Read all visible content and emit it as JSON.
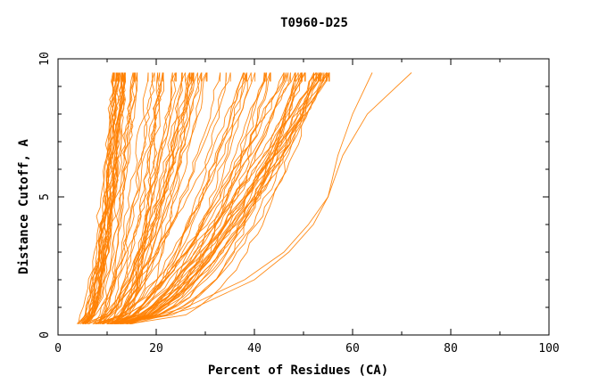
{
  "chart_data": {
    "type": "line",
    "title": "T0960-D25",
    "xlabel": "Percent of Residues (CA)",
    "ylabel": "Distance Cutoff, A",
    "xlim": [
      0,
      100
    ],
    "ylim": [
      0,
      10
    ],
    "x_ticks": [
      "0",
      "20",
      "40",
      "60",
      "80",
      "100"
    ],
    "y_ticks": [
      "0",
      "5",
      "10"
    ],
    "line_color": "#ff8000",
    "grid": false,
    "legend": "none",
    "curve_count": 100,
    "series_groups": [
      {
        "count": 22,
        "x_at_0_4": [
          3.5,
          6.0
        ],
        "x_at_9_5": [
          11.0,
          14.0
        ]
      },
      {
        "count": 33,
        "x_at_0_4": [
          5.0,
          12.0
        ],
        "x_at_9_5": [
          15.0,
          31.0
        ]
      },
      {
        "count": 15,
        "x_at_0_4": [
          7.0,
          13.0
        ],
        "x_at_9_5": [
          32.0,
          44.0
        ]
      },
      {
        "count": 30,
        "x_at_0_4": [
          9.0,
          15.0
        ],
        "x_at_9_5": [
          46.0,
          55.5
        ]
      }
    ],
    "outlier_curves": [
      {
        "x": [
          15.0,
          28.0,
          40.0,
          47.0,
          52.0,
          55.0,
          58.0,
          63.0,
          72.0
        ],
        "y": [
          0.4,
          1.0,
          2.0,
          3.0,
          4.0,
          5.0,
          6.5,
          8.0,
          9.5
        ]
      },
      {
        "x": [
          14.0,
          26.0,
          38.0,
          46.0,
          51.0,
          55.0,
          57.0,
          60.0,
          64.0
        ],
        "y": [
          0.4,
          1.0,
          2.0,
          3.0,
          4.0,
          5.0,
          6.5,
          8.0,
          9.5
        ]
      }
    ]
  }
}
